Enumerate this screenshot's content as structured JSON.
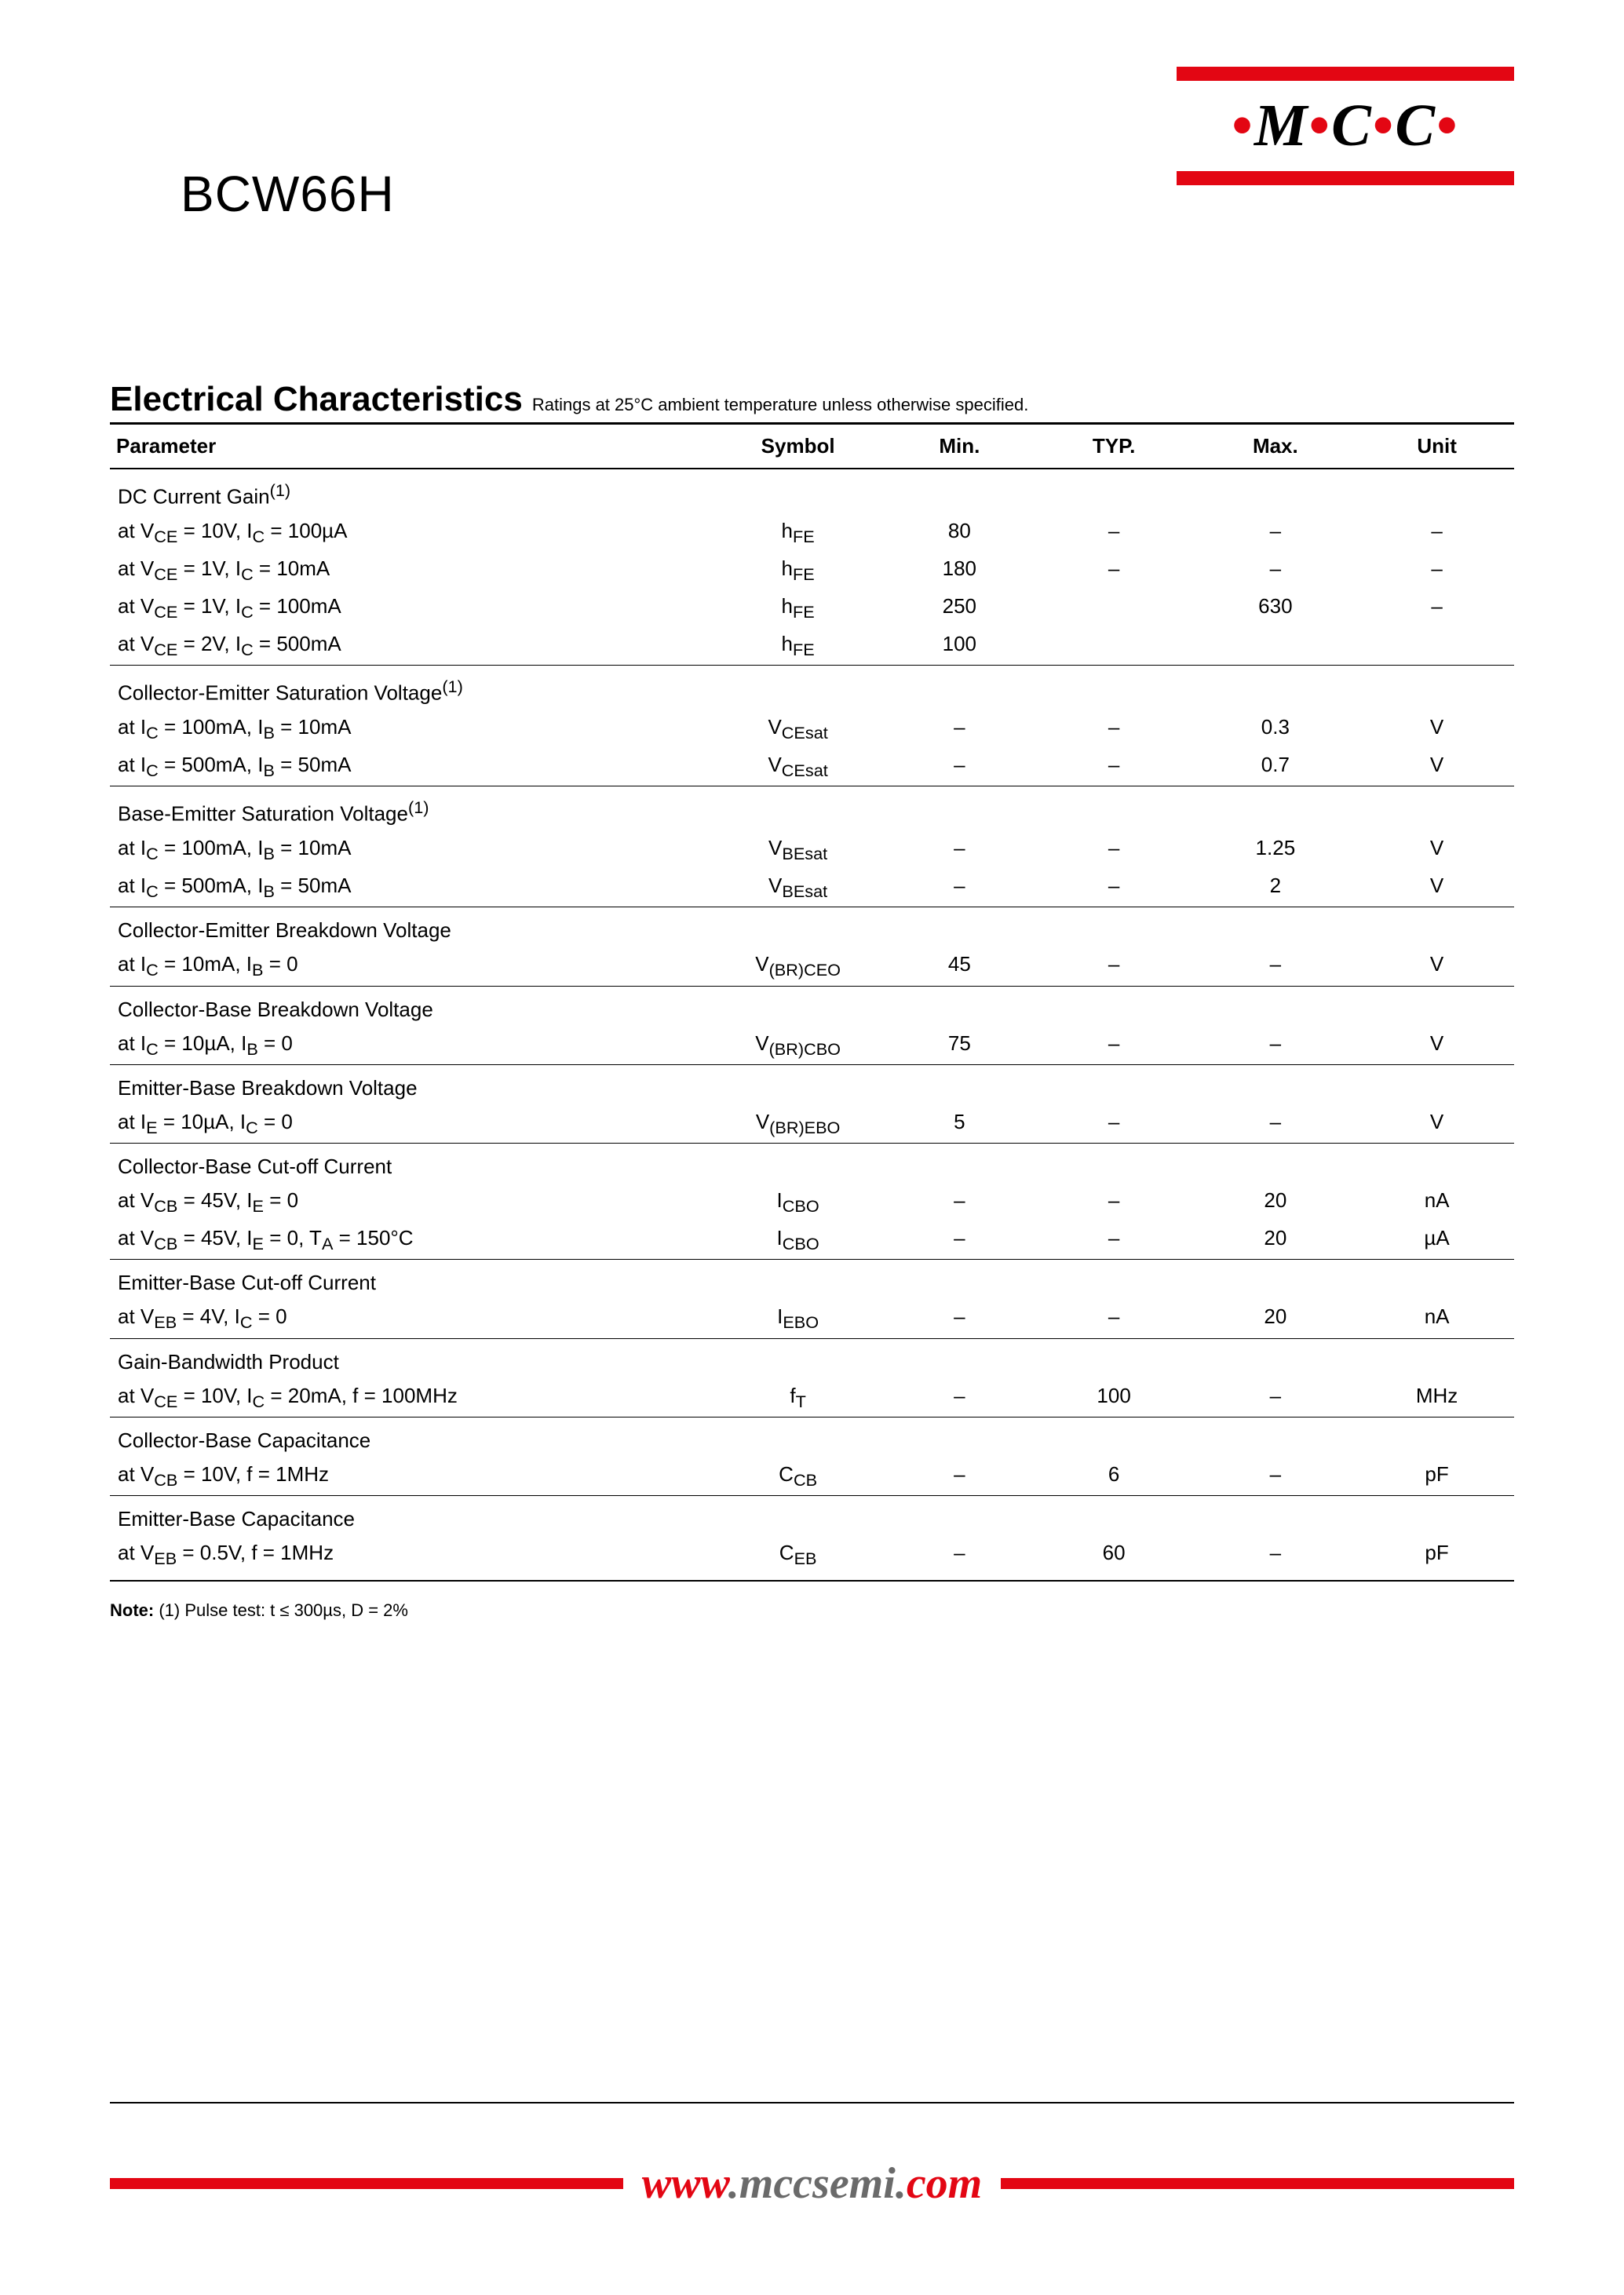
{
  "logo": {
    "text_parts": [
      "·",
      "M",
      "·",
      "C",
      "·",
      "C",
      "·"
    ],
    "bar_color": "#e30613"
  },
  "part_number": "BCW66H",
  "section": {
    "title": "Electrical Characteristics",
    "subtitle": "Ratings at 25°C ambient temperature unless otherwise specified."
  },
  "table": {
    "headers": [
      "Parameter",
      "Symbol",
      "Min.",
      "TYP.",
      "Max.",
      "Unit"
    ],
    "col_widths": [
      "43%",
      "12%",
      "11%",
      "11%",
      "12%",
      "11%"
    ],
    "groups": [
      {
        "rows": [
          {
            "param": "DC Current Gain<sup>(1)</sup>",
            "symbol": "",
            "min": "",
            "typ": "",
            "max": "",
            "unit": ""
          },
          {
            "param": "at V<sub>CE</sub> = 10V, I<sub>C</sub> = 100µA",
            "symbol": "h<sub>FE</sub>",
            "min": "80",
            "typ": "–",
            "max": "–",
            "unit": "–"
          },
          {
            "param": "at V<sub>CE</sub> = 1V, I<sub>C</sub> = 10mA",
            "symbol": "h<sub>FE</sub>",
            "min": "180",
            "typ": "–",
            "max": "–",
            "unit": "–"
          },
          {
            "param": "at V<sub>CE</sub> = 1V, I<sub>C</sub> = 100mA",
            "symbol": "h<sub>FE</sub>",
            "min": "250",
            "typ": "",
            "max": "630",
            "unit": "–"
          },
          {
            "param": "at V<sub>CE</sub> = 2V, I<sub>C</sub> = 500mA",
            "symbol": "h<sub>FE</sub>",
            "min": "100",
            "typ": "",
            "max": "",
            "unit": ""
          }
        ]
      },
      {
        "rows": [
          {
            "param": "Collector-Emitter Saturation Voltage<sup>(1)</sup>",
            "symbol": "",
            "min": "",
            "typ": "",
            "max": "",
            "unit": ""
          },
          {
            "param": "at I<sub>C</sub> = 100mA, I<sub>B</sub> = 10mA",
            "symbol": "V<sub>CEsat</sub>",
            "min": "–",
            "typ": "–",
            "max": "0.3",
            "unit": "V"
          },
          {
            "param": "at I<sub>C</sub> = 500mA, I<sub>B</sub> = 50mA",
            "symbol": "V<sub>CEsat</sub>",
            "min": "–",
            "typ": "–",
            "max": "0.7",
            "unit": "V"
          }
        ]
      },
      {
        "rows": [
          {
            "param": "Base-Emitter Saturation Voltage<sup>(1)</sup>",
            "symbol": "",
            "min": "",
            "typ": "",
            "max": "",
            "unit": ""
          },
          {
            "param": "at I<sub>C</sub> = 100mA, I<sub>B</sub> = 10mA",
            "symbol": "V<sub>BEsat</sub>",
            "min": "–",
            "typ": "–",
            "max": "1.25",
            "unit": "V"
          },
          {
            "param": "at I<sub>C</sub> = 500mA, I<sub>B</sub> = 50mA",
            "symbol": "V<sub>BEsat</sub>",
            "min": "–",
            "typ": "–",
            "max": "2",
            "unit": "V"
          }
        ]
      },
      {
        "rows": [
          {
            "param": "Collector-Emitter Breakdown Voltage",
            "symbol": "",
            "min": "",
            "typ": "",
            "max": "",
            "unit": ""
          },
          {
            "param": "at I<sub>C</sub> = 10mA, I<sub>B</sub> = 0",
            "symbol": "V<sub>(BR)CEO</sub>",
            "min": "45",
            "typ": "–",
            "max": "–",
            "unit": "V"
          }
        ]
      },
      {
        "rows": [
          {
            "param": "Collector-Base Breakdown Voltage",
            "symbol": "",
            "min": "",
            "typ": "",
            "max": "",
            "unit": ""
          },
          {
            "param": "at I<sub>C</sub> = 10µA, I<sub>B</sub> = 0",
            "symbol": "V<sub>(BR)CBO</sub>",
            "min": "75",
            "typ": "–",
            "max": "–",
            "unit": "V"
          }
        ]
      },
      {
        "rows": [
          {
            "param": "Emitter-Base Breakdown Voltage",
            "symbol": "",
            "min": "",
            "typ": "",
            "max": "",
            "unit": ""
          },
          {
            "param": "at I<sub>E</sub> = 10µA, I<sub>C</sub> = 0",
            "symbol": "V<sub>(BR)EBO</sub>",
            "min": "5",
            "typ": "–",
            "max": "–",
            "unit": "V"
          }
        ]
      },
      {
        "rows": [
          {
            "param": "Collector-Base Cut-off Current",
            "symbol": "",
            "min": "",
            "typ": "",
            "max": "",
            "unit": ""
          },
          {
            "param": "at V<sub>CB</sub> = 45V, I<sub>E</sub> = 0",
            "symbol": "I<sub>CBO</sub>",
            "min": "–",
            "typ": "–",
            "max": "20",
            "unit": "nA"
          },
          {
            "param": "at V<sub>CB</sub> = 45V, I<sub>E</sub> = 0, T<sub>A</sub> = 150°C",
            "symbol": "I<sub>CBO</sub>",
            "min": "–",
            "typ": "–",
            "max": "20",
            "unit": "µA"
          }
        ]
      },
      {
        "rows": [
          {
            "param": "Emitter-Base Cut-off Current",
            "symbol": "",
            "min": "",
            "typ": "",
            "max": "",
            "unit": ""
          },
          {
            "param": "at V<sub>EB</sub> = 4V, I<sub>C</sub> = 0",
            "symbol": "I<sub>EBO</sub>",
            "min": "–",
            "typ": "–",
            "max": "20",
            "unit": "nA"
          }
        ]
      },
      {
        "rows": [
          {
            "param": "Gain-Bandwidth Product",
            "symbol": "",
            "min": "",
            "typ": "",
            "max": "",
            "unit": ""
          },
          {
            "param": "at V<sub>CE</sub> = 10V, I<sub>C</sub> = 20mA, f = 100MHz",
            "symbol": "f<sub>T</sub>",
            "min": "–",
            "typ": "100",
            "max": "–",
            "unit": "MHz"
          }
        ]
      },
      {
        "rows": [
          {
            "param": "Collector-Base Capacitance",
            "symbol": "",
            "min": "",
            "typ": "",
            "max": "",
            "unit": ""
          },
          {
            "param": "at V<sub>CB</sub> = 10V, f = 1MHz",
            "symbol": "C<sub>CB</sub>",
            "min": "–",
            "typ": "6",
            "max": "–",
            "unit": "pF"
          }
        ]
      },
      {
        "rows": [
          {
            "param": "Emitter-Base Capacitance",
            "symbol": "",
            "min": "",
            "typ": "",
            "max": "",
            "unit": ""
          },
          {
            "param": "at V<sub>EB</sub> = 0.5V, f = 1MHz",
            "symbol": "C<sub>EB</sub>",
            "min": "–",
            "typ": "60",
            "max": "–",
            "unit": "pF"
          }
        ]
      }
    ]
  },
  "note": {
    "label": "Note:",
    "text": "(1) Pulse test: t ≤ 300µs, D = 2%"
  },
  "footer_url": {
    "w": "www",
    "dot1": ".",
    "host": "mccsemi",
    "dot2": ".",
    "tld": "com"
  }
}
